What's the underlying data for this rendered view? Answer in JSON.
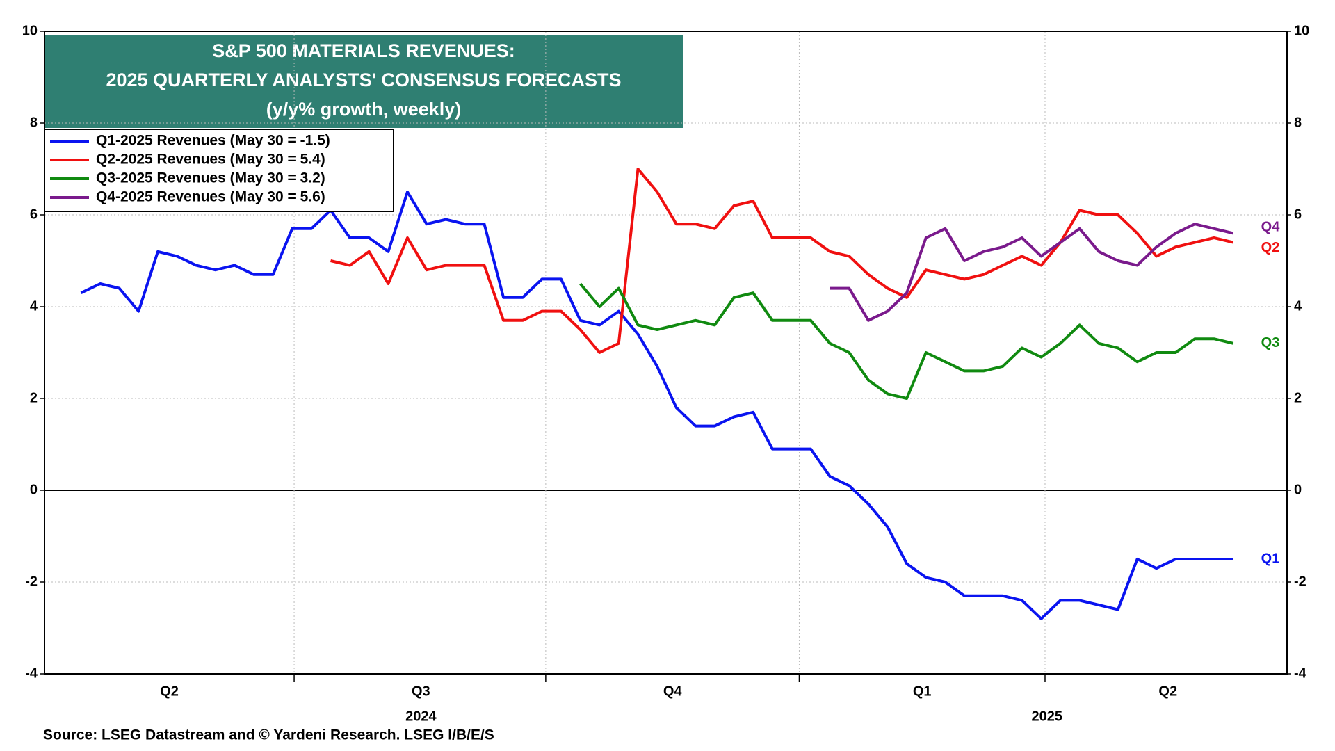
{
  "chart_data": {
    "type": "line",
    "title_lines": [
      "S&P 500 MATERIALS REVENUES:",
      "2025 QUARTERLY ANALYSTS' CONSENSUS FORECASTS",
      "(y/y% growth, weekly)"
    ],
    "source": "Source: LSEG Datastream and © Yardeni Research. LSEG I/B/E/S",
    "x": [
      1.9,
      2.9,
      3.9,
      4.9,
      5.9,
      6.9,
      7.9,
      8.9,
      9.9,
      10.9,
      11.9,
      12.9,
      13.9,
      14.9,
      15.9,
      16.9,
      17.9,
      18.9,
      19.9,
      20.9,
      21.9,
      22.9,
      23.9,
      24.9,
      25.9,
      26.9,
      27.9,
      28.9,
      29.9,
      30.9,
      31.9,
      32.9,
      33.9,
      34.9,
      35.9,
      36.9,
      37.9,
      38.9,
      39.9,
      40.9,
      41.9,
      42.9,
      43.9,
      44.9,
      45.9,
      46.9,
      47.9,
      48.9,
      49.9,
      50.9,
      51.9,
      52.9,
      53.9,
      54.9,
      55.9,
      56.9,
      57.9,
      58.9,
      59.9,
      60.9,
      61.9
    ],
    "xlim": [
      0,
      64.7
    ],
    "x_boundaries": [
      13,
      26.1,
      39.3,
      52.1
    ],
    "xticks": [
      {
        "value": 6.5,
        "label": "Q2"
      },
      {
        "value": 19.6,
        "label": "Q3"
      },
      {
        "value": 32.7,
        "label": "Q4"
      },
      {
        "value": 45.7,
        "label": "Q1"
      },
      {
        "value": 58.5,
        "label": "Q2"
      }
    ],
    "year_labels": [
      {
        "value": 19.6,
        "label": "2024"
      },
      {
        "value": 52.2,
        "label": "2025"
      }
    ],
    "ylim": [
      -4,
      10
    ],
    "yticks": [
      -4,
      -2,
      0,
      2,
      4,
      6,
      8,
      10
    ],
    "grid": true,
    "series": [
      {
        "name": "Q1-2025 Revenues (May 30 = -1.5)",
        "end_label": "Q1",
        "color": "#0a14f0",
        "values": [
          4.3,
          4.5,
          4.4,
          3.9,
          5.2,
          5.1,
          4.9,
          4.8,
          4.9,
          4.7,
          4.7,
          5.7,
          5.7,
          6.1,
          5.5,
          5.5,
          5.2,
          6.5,
          5.8,
          5.9,
          5.8,
          5.8,
          4.2,
          4.2,
          4.6,
          4.6,
          3.7,
          3.6,
          3.9,
          3.4,
          2.7,
          1.8,
          1.4,
          1.4,
          1.6,
          1.7,
          0.9,
          0.9,
          0.9,
          0.3,
          0.1,
          -0.3,
          -0.8,
          -1.6,
          -1.9,
          -2.0,
          -2.3,
          -2.3,
          -2.3,
          -2.4,
          -2.8,
          -2.4,
          -2.4,
          -2.5,
          -2.6,
          -1.5,
          -1.7,
          -1.5,
          -1.5,
          -1.5,
          -1.5
        ]
      },
      {
        "name": "Q2-2025 Revenues (May 30 = 5.4)",
        "end_label": "Q2",
        "color": "#f01010",
        "values": [
          null,
          null,
          null,
          null,
          null,
          null,
          null,
          null,
          null,
          null,
          null,
          null,
          null,
          5.0,
          4.9,
          5.2,
          4.5,
          5.5,
          4.8,
          4.9,
          4.9,
          4.9,
          3.7,
          3.7,
          3.9,
          3.9,
          3.5,
          3.0,
          3.2,
          7.0,
          6.5,
          5.8,
          5.8,
          5.7,
          6.2,
          6.3,
          5.5,
          5.5,
          5.5,
          5.2,
          5.1,
          4.7,
          4.4,
          4.2,
          4.8,
          4.7,
          4.6,
          4.7,
          4.9,
          5.1,
          4.9,
          5.4,
          6.1,
          6.0,
          6.0,
          5.6,
          5.1,
          5.3,
          5.4,
          5.5,
          5.4
        ]
      },
      {
        "name": "Q3-2025 Revenues (May 30 = 3.2)",
        "end_label": "Q3",
        "color": "#108a10",
        "values": [
          null,
          null,
          null,
          null,
          null,
          null,
          null,
          null,
          null,
          null,
          null,
          null,
          null,
          null,
          null,
          null,
          null,
          null,
          null,
          null,
          null,
          null,
          null,
          null,
          null,
          null,
          4.5,
          4.0,
          4.4,
          3.6,
          3.5,
          3.6,
          3.7,
          3.6,
          4.2,
          4.3,
          3.7,
          3.7,
          3.7,
          3.2,
          3.0,
          2.4,
          2.1,
          2.0,
          3.0,
          2.8,
          2.6,
          2.6,
          2.7,
          3.1,
          2.9,
          3.2,
          3.6,
          3.2,
          3.1,
          2.8,
          3.0,
          3.0,
          3.3,
          3.3,
          3.2
        ]
      },
      {
        "name": "Q4-2025 Revenues (May 30 = 5.6)",
        "end_label": "Q4",
        "color": "#7a1a8c",
        "values": [
          null,
          null,
          null,
          null,
          null,
          null,
          null,
          null,
          null,
          null,
          null,
          null,
          null,
          null,
          null,
          null,
          null,
          null,
          null,
          null,
          null,
          null,
          null,
          null,
          null,
          null,
          null,
          null,
          null,
          null,
          null,
          null,
          null,
          null,
          null,
          null,
          null,
          null,
          null,
          4.4,
          4.4,
          3.7,
          3.9,
          4.3,
          5.5,
          5.7,
          5.0,
          5.2,
          5.3,
          5.5,
          5.1,
          5.4,
          5.7,
          5.2,
          5.0,
          4.9,
          5.3,
          5.6,
          5.8,
          5.7,
          5.6
        ]
      }
    ]
  }
}
